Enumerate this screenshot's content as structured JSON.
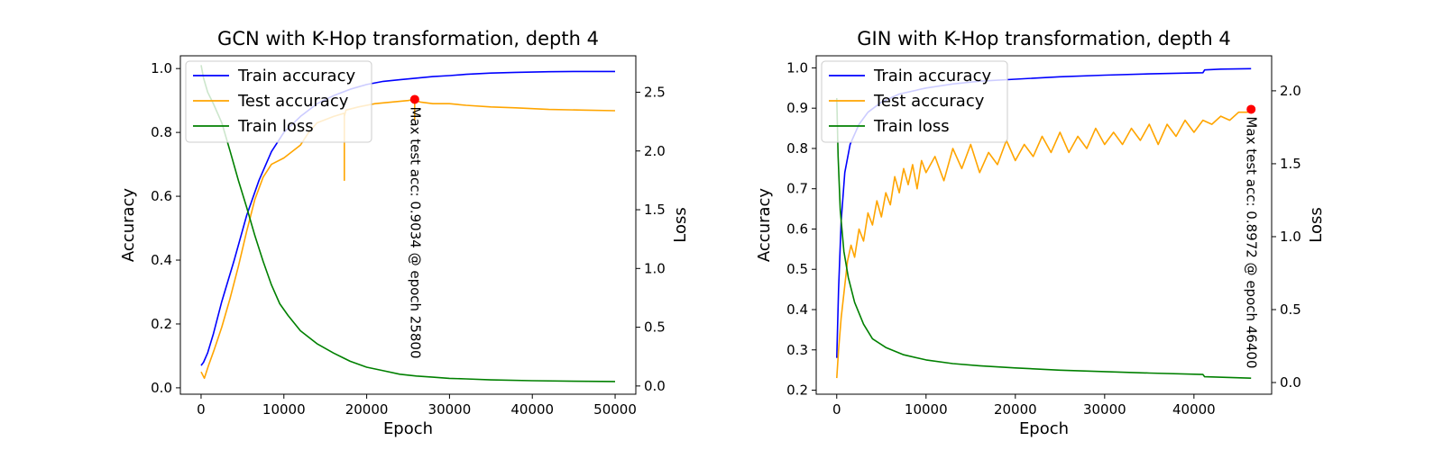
{
  "chart_data": [
    {
      "type": "line",
      "title": "GCN with K-Hop transformation, depth 4",
      "xlabel": "Epoch",
      "ylabel": "Accuracy",
      "y2label": "Loss",
      "xlim": [
        -2500,
        52500
      ],
      "ylim": [
        -0.02,
        1.04
      ],
      "y2lim": [
        -0.07,
        2.81
      ],
      "xticks": [
        "0",
        "10000",
        "20000",
        "30000",
        "40000",
        "50000"
      ],
      "yticks": [
        "0.0",
        "0.2",
        "0.4",
        "0.6",
        "0.8",
        "1.0"
      ],
      "y2ticks": [
        "0.0",
        "0.5",
        "1.0",
        "1.5",
        "2.0",
        "2.5"
      ],
      "legend_position": "top-left",
      "grid": false,
      "series": [
        {
          "name": "Train accuracy",
          "axis": "left",
          "color": "#0000ff",
          "x": [
            0,
            300,
            800,
            1500,
            2500,
            4000,
            5500,
            7000,
            8500,
            10000,
            12000,
            14000,
            16000,
            18000,
            20000,
            22000,
            24000,
            26000,
            28000,
            30000,
            32000,
            35000,
            38000,
            42000,
            46000,
            50000
          ],
          "y": [
            0.07,
            0.08,
            0.11,
            0.17,
            0.27,
            0.4,
            0.54,
            0.65,
            0.74,
            0.8,
            0.85,
            0.89,
            0.915,
            0.935,
            0.95,
            0.96,
            0.965,
            0.97,
            0.975,
            0.978,
            0.982,
            0.986,
            0.988,
            0.99,
            0.991,
            0.991
          ]
        },
        {
          "name": "Test accuracy",
          "axis": "left",
          "color": "#ffa500",
          "x": [
            0,
            400,
            900,
            1600,
            2500,
            3500,
            4500,
            5500,
            6500,
            7500,
            8500,
            10000,
            12000,
            13000,
            14000,
            16000,
            17300,
            17300,
            17300,
            17500,
            19000,
            21000,
            23000,
            25000,
            25800,
            25800,
            25800,
            26500,
            28000,
            30000,
            32000,
            35000,
            38000,
            42000,
            46000,
            50000
          ],
          "y": [
            0.05,
            0.03,
            0.07,
            0.12,
            0.19,
            0.28,
            0.38,
            0.49,
            0.59,
            0.66,
            0.7,
            0.72,
            0.76,
            0.8,
            0.83,
            0.85,
            0.86,
            0.65,
            0.85,
            0.87,
            0.88,
            0.89,
            0.895,
            0.9,
            0.9034,
            0.84,
            0.9,
            0.895,
            0.89,
            0.89,
            0.885,
            0.88,
            0.877,
            0.872,
            0.87,
            0.868
          ]
        },
        {
          "name": "Train loss",
          "axis": "right",
          "color": "#008000",
          "x": [
            0,
            300,
            800,
            1500,
            2500,
            3500,
            4500,
            5500,
            6500,
            7500,
            8500,
            9500,
            10500,
            12000,
            14000,
            16000,
            18000,
            20000,
            22000,
            24000,
            26000,
            28000,
            30000,
            32000,
            35000,
            40000,
            45000,
            50000
          ],
          "y": [
            2.73,
            2.62,
            2.5,
            2.4,
            2.24,
            2.0,
            1.75,
            1.52,
            1.28,
            1.06,
            0.86,
            0.7,
            0.6,
            0.47,
            0.36,
            0.28,
            0.21,
            0.16,
            0.13,
            0.1,
            0.085,
            0.075,
            0.065,
            0.06,
            0.052,
            0.045,
            0.04,
            0.038
          ]
        }
      ],
      "annotation": {
        "text": "Max test acc: 0.9034 @ epoch 25800",
        "x": 25800,
        "y": 0.9034,
        "color": "#ff0000"
      }
    },
    {
      "type": "line",
      "title": "GIN with K-Hop transformation, depth 4",
      "xlabel": "Epoch",
      "ylabel": "Accuracy",
      "y2label": "Loss",
      "xlim": [
        -2300,
        48700
      ],
      "ylim": [
        0.19,
        1.03
      ],
      "y2lim": [
        -0.08,
        2.24
      ],
      "xticks": [
        "0",
        "10000",
        "20000",
        "30000",
        "40000"
      ],
      "yticks": [
        "0.2",
        "0.3",
        "0.4",
        "0.5",
        "0.6",
        "0.7",
        "0.8",
        "0.9",
        "1.0"
      ],
      "y2ticks": [
        "0.0",
        "0.5",
        "1.0",
        "1.5",
        "2.0"
      ],
      "legend_position": "top-left",
      "grid": false,
      "series": [
        {
          "name": "Train accuracy",
          "axis": "left",
          "color": "#0000ff",
          "x": [
            0,
            200,
            500,
            900,
            1500,
            2500,
            3500,
            5000,
            7000,
            10000,
            13000,
            16000,
            20000,
            25000,
            30000,
            35000,
            41000,
            41200,
            43000,
            46400
          ],
          "y": [
            0.28,
            0.45,
            0.62,
            0.74,
            0.81,
            0.86,
            0.89,
            0.915,
            0.935,
            0.95,
            0.96,
            0.967,
            0.972,
            0.978,
            0.982,
            0.985,
            0.988,
            0.995,
            0.997,
            0.998
          ]
        },
        {
          "name": "Test accuracy",
          "axis": "left",
          "color": "#ffa500",
          "x": [
            0,
            200,
            500,
            800,
            1200,
            1600,
            2000,
            2500,
            3000,
            3500,
            4000,
            4500,
            5000,
            5500,
            6000,
            6500,
            7000,
            7500,
            8000,
            8500,
            9000,
            9500,
            10000,
            11000,
            12000,
            13000,
            14000,
            15000,
            16000,
            17000,
            18000,
            19000,
            20000,
            21000,
            22000,
            23000,
            24000,
            25000,
            26000,
            27000,
            28000,
            29000,
            30000,
            31000,
            32000,
            33000,
            34000,
            35000,
            36000,
            37000,
            38000,
            39000,
            40000,
            41000,
            42000,
            43000,
            44000,
            45000,
            46000,
            46400
          ],
          "y": [
            0.23,
            0.3,
            0.38,
            0.44,
            0.52,
            0.56,
            0.53,
            0.6,
            0.57,
            0.64,
            0.61,
            0.67,
            0.63,
            0.69,
            0.66,
            0.73,
            0.69,
            0.75,
            0.71,
            0.76,
            0.7,
            0.77,
            0.74,
            0.78,
            0.72,
            0.8,
            0.75,
            0.81,
            0.74,
            0.79,
            0.76,
            0.82,
            0.77,
            0.81,
            0.78,
            0.83,
            0.79,
            0.84,
            0.79,
            0.83,
            0.8,
            0.85,
            0.81,
            0.84,
            0.81,
            0.85,
            0.82,
            0.86,
            0.81,
            0.86,
            0.83,
            0.87,
            0.84,
            0.87,
            0.86,
            0.88,
            0.87,
            0.89,
            0.89,
            0.8972
          ]
        },
        {
          "name": "Train loss",
          "axis": "right",
          "color": "#008000",
          "x": [
            0,
            150,
            400,
            800,
            1300,
            2000,
            3000,
            4000,
            5500,
            7500,
            10000,
            13000,
            16000,
            20000,
            25000,
            30000,
            35000,
            41000,
            41200,
            46400
          ],
          "y": [
            1.95,
            1.55,
            1.18,
            0.9,
            0.72,
            0.55,
            0.4,
            0.3,
            0.24,
            0.19,
            0.155,
            0.13,
            0.115,
            0.1,
            0.085,
            0.075,
            0.065,
            0.055,
            0.04,
            0.03
          ]
        }
      ],
      "annotation": {
        "text": "Max test acc: 0.8972 @ epoch 46400",
        "x": 46400,
        "y": 0.8972,
        "color": "#ff0000"
      }
    }
  ]
}
